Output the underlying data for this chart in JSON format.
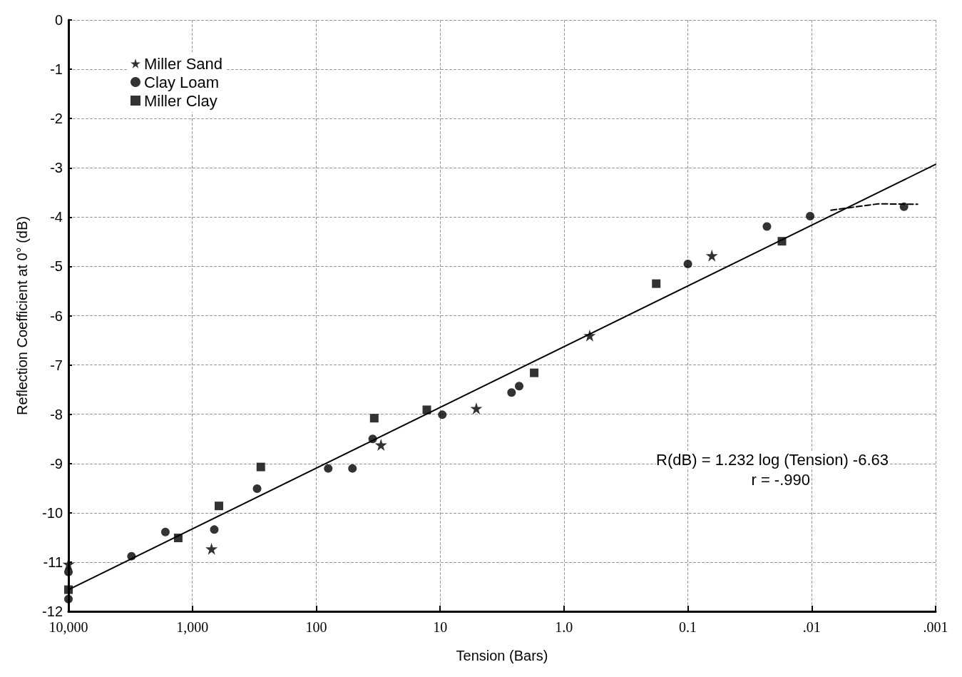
{
  "chart_data": {
    "type": "scatter",
    "xlabel": "Tension (Bars)",
    "ylabel": "Reflection Coefficient at 0° (dB)",
    "xlim": [
      10000,
      0.001
    ],
    "xticks": [
      {
        "value": 10000,
        "label": "10,000"
      },
      {
        "value": 1000,
        "label": "1,000"
      },
      100,
      10,
      {
        "value": 1,
        "label": "1.0"
      },
      0.1,
      {
        "value": 0.01,
        "label": ".01"
      },
      {
        "value": 0.001,
        "label": ".001"
      }
    ],
    "ylim": [
      -12,
      0
    ],
    "yticks": [
      -12,
      -11,
      -10,
      -9,
      -8,
      -7,
      -6,
      -5,
      -4,
      -3,
      -2,
      -1,
      0
    ],
    "log": "x",
    "grid": true,
    "legend": "top left",
    "annotations": [
      "R(dB) = 1.232 log (Tension) -6.63",
      "r = -.990"
    ],
    "series": [
      {
        "name": "Miller Sand",
        "marker": "star",
        "color": "#000000",
        "x": [
          10000,
          700,
          30,
          5.1,
          0.62,
          0.064
        ],
        "values": [
          -11.04,
          -10.73,
          -8.62,
          -7.88,
          -6.4,
          -4.78
        ]
      },
      {
        "name": "Clay Loam",
        "marker": "circle",
        "color": "#000000",
        "x": [
          10000,
          10000,
          3100,
          1650,
          665,
          300,
          80,
          51,
          35,
          9.6,
          2.65,
          2.3,
          0.1,
          0.023,
          0.0103,
          0.0018
        ],
        "values": [
          -11.2,
          -11.75,
          -10.88,
          -10.39,
          -10.34,
          -9.51,
          -9.1,
          -9.1,
          -8.5,
          -8.01,
          -7.56,
          -7.43,
          -4.95,
          -4.19,
          -3.98,
          -3.79
        ]
      },
      {
        "name": "Miller Clay",
        "marker": "square",
        "color": "#000000",
        "x": [
          10000,
          1300,
          610,
          280,
          34,
          12.8,
          1.74,
          0.18,
          0.0174
        ],
        "values": [
          -11.56,
          -10.51,
          -9.86,
          -9.07,
          -8.08,
          -7.91,
          -7.16,
          -5.35,
          -4.49
        ]
      },
      {
        "type": "line",
        "marker": "none",
        "line_style": "solid",
        "color": "#000000",
        "x": [
          10000,
          0.001
        ],
        "values": [
          -11.56,
          -2.93
        ]
      },
      {
        "type": "line",
        "marker": "none",
        "line_style": "dashed",
        "color": "#000000",
        "x": [
          0.007,
          0.0029,
          0.0014
        ],
        "values": [
          -3.86,
          -3.73,
          -3.74
        ]
      }
    ]
  }
}
